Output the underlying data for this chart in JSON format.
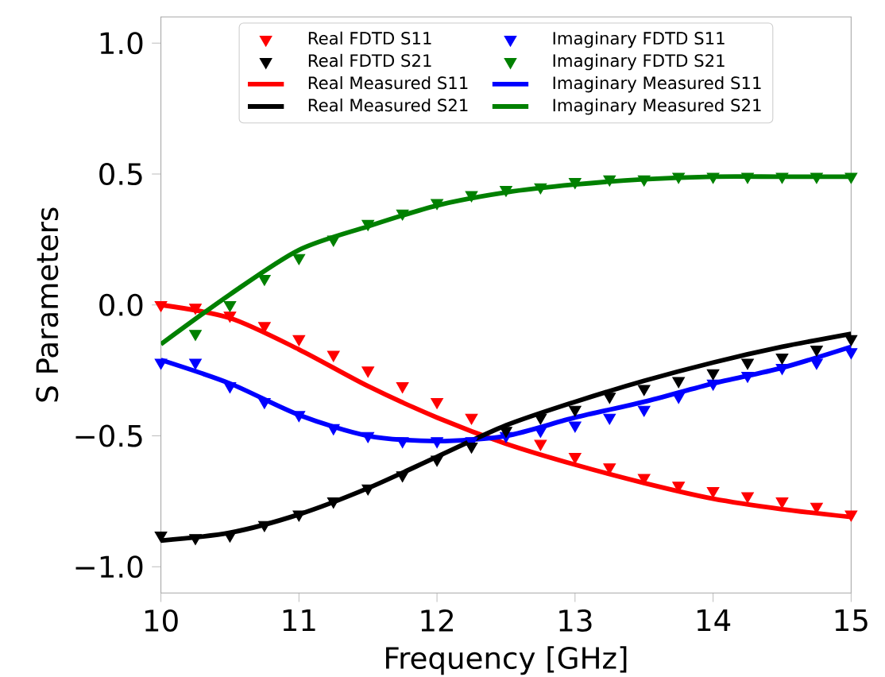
{
  "chart_data": {
    "type": "line",
    "xlabel": "Frequency [GHz]",
    "ylabel": "S Parameters",
    "xlim": [
      10,
      15
    ],
    "ylim": [
      -1.1,
      1.1
    ],
    "xticks": [
      10,
      11,
      12,
      13,
      14,
      15
    ],
    "yticks": [
      {
        "value": -1,
        "label": "−1.0"
      },
      {
        "value": -0.5,
        "label": "−0.5"
      },
      {
        "value": 0,
        "label": "0.0"
      },
      {
        "value": 0.5,
        "label": "0.5"
      },
      {
        "value": 1,
        "label": "1.0"
      }
    ],
    "legend": "top",
    "grid": false,
    "series": [
      {
        "name": "Real FDTD S11",
        "type": "scatter",
        "marker": "triangle",
        "color": "#ff0000",
        "x": [
          10,
          10.25,
          10.5,
          10.75,
          11,
          11.25,
          11.5,
          11.75,
          12,
          12.25,
          12.75,
          13,
          13.25,
          13.5,
          13.75,
          14,
          14.25,
          14.5,
          14.75,
          15
        ],
        "values": [
          0.0,
          -0.01,
          -0.04,
          -0.08,
          -0.13,
          -0.19,
          -0.25,
          -0.31,
          -0.37,
          -0.43,
          -0.53,
          -0.58,
          -0.62,
          -0.66,
          -0.69,
          -0.71,
          -0.73,
          -0.75,
          -0.77,
          -0.8
        ]
      },
      {
        "name": "Imaginary FDTD S11",
        "type": "scatter",
        "marker": "triangle",
        "color": "#0000ff",
        "x": [
          10,
          10.25,
          10.5,
          10.75,
          11,
          11.25,
          11.5,
          11.75,
          12,
          12.25,
          12.5,
          12.75,
          13,
          13.25,
          13.5,
          13.75,
          14,
          14.25,
          14.5,
          14.75,
          15
        ],
        "values": [
          -0.22,
          -0.22,
          -0.31,
          -0.37,
          -0.42,
          -0.47,
          -0.5,
          -0.52,
          -0.52,
          -0.52,
          -0.5,
          -0.48,
          -0.46,
          -0.43,
          -0.4,
          -0.35,
          -0.3,
          -0.27,
          -0.24,
          -0.22,
          -0.18
        ]
      },
      {
        "name": "Real FDTD S21",
        "type": "scatter",
        "marker": "triangle",
        "color": "#000000",
        "x": [
          10,
          10.25,
          10.5,
          10.75,
          11,
          11.25,
          11.5,
          11.75,
          12,
          12.25,
          12.5,
          12.75,
          13,
          13.25,
          13.5,
          13.75,
          14,
          14.25,
          14.5,
          14.75,
          15
        ],
        "values": [
          -0.88,
          -0.89,
          -0.88,
          -0.84,
          -0.8,
          -0.75,
          -0.7,
          -0.65,
          -0.59,
          -0.54,
          -0.48,
          -0.43,
          -0.4,
          -0.35,
          -0.32,
          -0.29,
          -0.26,
          -0.22,
          -0.2,
          -0.17,
          -0.13
        ]
      },
      {
        "name": "Imaginary FDTD S21",
        "type": "scatter",
        "marker": "triangle",
        "color": "#008000",
        "x": [
          10.25,
          10.5,
          10.75,
          11,
          11.25,
          11.5,
          11.75,
          12,
          12.25,
          12.5,
          12.75,
          13,
          13.25,
          13.5,
          13.75,
          14,
          14.25,
          14.5,
          14.75,
          15
        ],
        "values": [
          -0.11,
          0.0,
          0.1,
          0.18,
          0.25,
          0.31,
          0.35,
          0.39,
          0.42,
          0.44,
          0.45,
          0.47,
          0.48,
          0.48,
          0.49,
          0.49,
          0.49,
          0.49,
          0.49,
          0.49
        ]
      },
      {
        "name": "Real Measured S11",
        "marker": "none",
        "color": "#ff0000",
        "x": [
          10,
          10.5,
          11,
          11.5,
          12,
          12.5,
          13,
          13.5,
          14,
          14.5,
          15
        ],
        "values": [
          0.0,
          -0.05,
          -0.17,
          -0.31,
          -0.43,
          -0.53,
          -0.61,
          -0.68,
          -0.74,
          -0.78,
          -0.81
        ]
      },
      {
        "name": "Imaginary Measured S11",
        "marker": "none",
        "color": "#0000ff",
        "x": [
          10,
          10.5,
          11,
          11.5,
          12,
          12.5,
          13,
          13.5,
          14,
          14.5,
          15
        ],
        "values": [
          -0.21,
          -0.3,
          -0.42,
          -0.5,
          -0.52,
          -0.5,
          -0.43,
          -0.37,
          -0.3,
          -0.24,
          -0.16
        ]
      },
      {
        "name": "Real Measured S21",
        "marker": "none",
        "color": "#000000",
        "x": [
          10,
          10.5,
          11,
          11.5,
          12,
          12.5,
          13,
          13.5,
          14,
          14.5,
          15
        ],
        "values": [
          -0.9,
          -0.87,
          -0.8,
          -0.7,
          -0.58,
          -0.46,
          -0.37,
          -0.29,
          -0.22,
          -0.16,
          -0.11
        ]
      },
      {
        "name": "Imaginary Measured S21",
        "marker": "none",
        "color": "#008000",
        "x": [
          10,
          10.5,
          11,
          11.5,
          12,
          12.5,
          13,
          13.5,
          14,
          14.5,
          15
        ],
        "values": [
          -0.15,
          0.04,
          0.21,
          0.3,
          0.38,
          0.43,
          0.46,
          0.48,
          0.49,
          0.49,
          0.49
        ]
      }
    ]
  }
}
